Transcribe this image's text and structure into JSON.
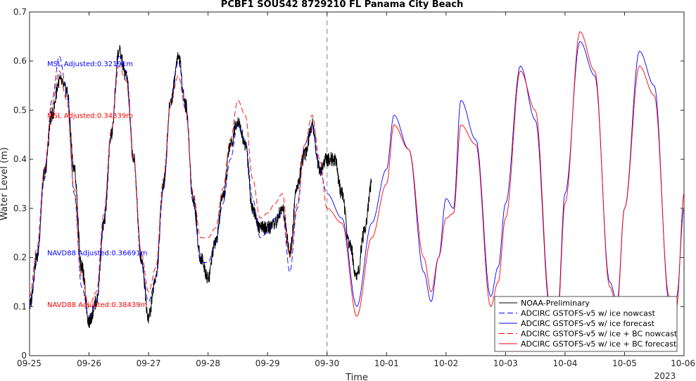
{
  "chart_data": {
    "type": "line",
    "title": "PCBF1 SOUS42 8729210 FL Panama City Beach",
    "xlabel": "Time",
    "ylabel": "Water Level (m)",
    "xlim": [
      "2023-09-25",
      "2023-10-06"
    ],
    "ylim": [
      0,
      0.7
    ],
    "year_label": "2023",
    "x_tick_labels": [
      "09-25",
      "09-26",
      "09-27",
      "09-28",
      "09-29",
      "09-30",
      "10-01",
      "10-02",
      "10-03",
      "10-04",
      "10-05",
      "10-06"
    ],
    "y_tick_labels": [
      "0",
      "0.1",
      "0.2",
      "0.3",
      "0.4",
      "0.5",
      "0.6",
      "0.7"
    ],
    "nowcast_forecast_divider": "2023-09-30",
    "grid": false,
    "legend_position": "bottom-right",
    "annotations": [
      {
        "text": "MSL Adjusted:0.32191m",
        "color": "#0000ff"
      },
      {
        "text": "MSL Adjusted:0.34339m",
        "color": "#ff0000"
      },
      {
        "text": "NAVD88 Adjusted:0.36691m",
        "color": "#0000ff"
      },
      {
        "text": "NAVD88 Adjusted:0.38439m",
        "color": "#ff0000"
      }
    ],
    "series": [
      {
        "name": "NOAA-Preliminary",
        "color": "#000000",
        "dash": "solid",
        "x_start": "2023-09-25T00:00",
        "x_end": "2023-09-30T18:00",
        "points": [
          [
            "09-25 00:00",
            0.1
          ],
          [
            "09-25 03:00",
            0.2
          ],
          [
            "09-25 06:00",
            0.37
          ],
          [
            "09-25 09:00",
            0.49
          ],
          [
            "09-25 12:00",
            0.56
          ],
          [
            "09-25 15:00",
            0.54
          ],
          [
            "09-25 18:00",
            0.38
          ],
          [
            "09-25 21:00",
            0.18
          ],
          [
            "09-26 00:00",
            0.07
          ],
          [
            "09-26 03:00",
            0.11
          ],
          [
            "09-26 06:00",
            0.27
          ],
          [
            "09-26 09:00",
            0.45
          ],
          [
            "09-26 12:00",
            0.62
          ],
          [
            "09-26 15:00",
            0.57
          ],
          [
            "09-26 18:00",
            0.4
          ],
          [
            "09-26 21:00",
            0.2
          ],
          [
            "09-27 00:00",
            0.08
          ],
          [
            "09-27 03:00",
            0.16
          ],
          [
            "09-27 06:00",
            0.35
          ],
          [
            "09-27 09:00",
            0.52
          ],
          [
            "09-27 12:00",
            0.61
          ],
          [
            "09-27 15:00",
            0.51
          ],
          [
            "09-27 18:00",
            0.32
          ],
          [
            "09-27 21:00",
            0.2
          ],
          [
            "09-28 00:00",
            0.16
          ],
          [
            "09-28 03:00",
            0.23
          ],
          [
            "09-28 06:00",
            0.32
          ],
          [
            "09-28 09:00",
            0.43
          ],
          [
            "09-28 12:00",
            0.48
          ],
          [
            "09-28 15:00",
            0.43
          ],
          [
            "09-28 18:00",
            0.3
          ],
          [
            "09-28 21:00",
            0.26
          ],
          [
            "09-29 00:00",
            0.26
          ],
          [
            "09-29 03:00",
            0.27
          ],
          [
            "09-29 06:00",
            0.3
          ],
          [
            "09-29 09:00",
            0.21
          ],
          [
            "09-29 12:00",
            0.35
          ],
          [
            "09-29 15:00",
            0.41
          ],
          [
            "09-29 18:00",
            0.47
          ],
          [
            "09-29 21:00",
            0.38
          ],
          [
            "09-30 00:00",
            0.4
          ],
          [
            "09-30 03:00",
            0.4
          ],
          [
            "09-30 06:00",
            0.33
          ],
          [
            "09-30 09:00",
            0.23
          ],
          [
            "09-30 12:00",
            0.16
          ],
          [
            "09-30 15:00",
            0.25
          ],
          [
            "09-30 18:00",
            0.35
          ]
        ]
      },
      {
        "name": "ADCIRC GSTOFS-v5 w/ ice nowcast",
        "color": "#0000ff",
        "dash": "dashed",
        "points": [
          [
            "09-25 00:00",
            0.1
          ],
          [
            "09-25 03:00",
            0.2
          ],
          [
            "09-25 06:00",
            0.36
          ],
          [
            "09-25 09:00",
            0.52
          ],
          [
            "09-25 12:00",
            0.61
          ],
          [
            "09-25 15:00",
            0.54
          ],
          [
            "09-25 18:00",
            0.33
          ],
          [
            "09-25 21:00",
            0.14
          ],
          [
            "09-26 00:00",
            0.08
          ],
          [
            "09-26 03:00",
            0.11
          ],
          [
            "09-26 06:00",
            0.27
          ],
          [
            "09-26 09:00",
            0.46
          ],
          [
            "09-26 12:00",
            0.61
          ],
          [
            "09-26 15:00",
            0.58
          ],
          [
            "09-26 18:00",
            0.4
          ],
          [
            "09-26 21:00",
            0.19
          ],
          [
            "09-27 00:00",
            0.11
          ],
          [
            "09-27 03:00",
            0.16
          ],
          [
            "09-27 06:00",
            0.34
          ],
          [
            "09-27 09:00",
            0.52
          ],
          [
            "09-27 12:00",
            0.6
          ],
          [
            "09-27 15:00",
            0.51
          ],
          [
            "09-27 18:00",
            0.31
          ],
          [
            "09-27 21:00",
            0.19
          ],
          [
            "09-28 00:00",
            0.19
          ],
          [
            "09-28 03:00",
            0.23
          ],
          [
            "09-28 06:00",
            0.31
          ],
          [
            "09-28 09:00",
            0.4
          ],
          [
            "09-28 12:00",
            0.47
          ],
          [
            "09-28 15:00",
            0.44
          ],
          [
            "09-28 18:00",
            0.32
          ],
          [
            "09-28 21:00",
            0.24
          ],
          [
            "09-29 00:00",
            0.25
          ],
          [
            "09-29 03:00",
            0.28
          ],
          [
            "09-29 06:00",
            0.29
          ],
          [
            "09-29 09:00",
            0.17
          ],
          [
            "09-29 12:00",
            0.3
          ],
          [
            "09-29 15:00",
            0.43
          ],
          [
            "09-29 18:00",
            0.47
          ],
          [
            "09-29 21:00",
            0.38
          ],
          [
            "09-30 00:00",
            0.33
          ]
        ]
      },
      {
        "name": "ADCIRC GSTOFS-v5 w/ ice forecast",
        "color": "#0000ff",
        "dash": "solid",
        "points": [
          [
            "09-30 00:00",
            0.33
          ],
          [
            "09-30 06:00",
            0.28
          ],
          [
            "09-30 12:00",
            0.1
          ],
          [
            "09-30 18:00",
            0.27
          ],
          [
            "10-01 00:00",
            0.38
          ],
          [
            "10-01 03:00",
            0.49
          ],
          [
            "10-01 09:00",
            0.42
          ],
          [
            "10-01 15:00",
            0.17
          ],
          [
            "10-01 18:00",
            0.11
          ],
          [
            "10-01 21:00",
            0.2
          ],
          [
            "10-02 00:00",
            0.32
          ],
          [
            "10-02 03:00",
            0.3
          ],
          [
            "10-02 06:00",
            0.52
          ],
          [
            "10-02 12:00",
            0.44
          ],
          [
            "10-02 18:00",
            0.12
          ],
          [
            "10-02 21:00",
            0.18
          ],
          [
            "10-03 00:00",
            0.31
          ],
          [
            "10-03 06:00",
            0.59
          ],
          [
            "10-03 12:00",
            0.48
          ],
          [
            "10-03 18:00",
            0.09
          ],
          [
            "10-03 21:00",
            0.09
          ],
          [
            "10-04 00:00",
            0.33
          ],
          [
            "10-04 06:00",
            0.64
          ],
          [
            "10-04 12:00",
            0.57
          ],
          [
            "10-04 18:00",
            0.15
          ],
          [
            "10-04 21:00",
            0.11
          ],
          [
            "10-05 00:00",
            0.3
          ],
          [
            "10-05 06:00",
            0.62
          ],
          [
            "10-05 12:00",
            0.55
          ],
          [
            "10-05 18:00",
            0.11
          ],
          [
            "10-05 21:00",
            0.12
          ],
          [
            "10-06 00:00",
            0.3
          ]
        ]
      },
      {
        "name": "ADCIRC GSTOFS-v5 w/ ice + BC nowcast",
        "color": "#ff0000",
        "dash": "dashed",
        "points": [
          [
            "09-25 00:00",
            0.12
          ],
          [
            "09-25 03:00",
            0.22
          ],
          [
            "09-25 06:00",
            0.38
          ],
          [
            "09-25 09:00",
            0.51
          ],
          [
            "09-25 12:00",
            0.58
          ],
          [
            "09-25 15:00",
            0.52
          ],
          [
            "09-25 18:00",
            0.34
          ],
          [
            "09-25 21:00",
            0.16
          ],
          [
            "09-26 00:00",
            0.1
          ],
          [
            "09-26 03:00",
            0.13
          ],
          [
            "09-26 06:00",
            0.29
          ],
          [
            "09-26 09:00",
            0.46
          ],
          [
            "09-26 12:00",
            0.59
          ],
          [
            "09-26 15:00",
            0.56
          ],
          [
            "09-26 18:00",
            0.4
          ],
          [
            "09-26 21:00",
            0.21
          ],
          [
            "09-27 00:00",
            0.13
          ],
          [
            "09-27 03:00",
            0.18
          ],
          [
            "09-27 06:00",
            0.36
          ],
          [
            "09-27 09:00",
            0.52
          ],
          [
            "09-27 12:00",
            0.57
          ],
          [
            "09-27 15:00",
            0.5
          ],
          [
            "09-27 18:00",
            0.33
          ],
          [
            "09-27 21:00",
            0.24
          ],
          [
            "09-28 00:00",
            0.24
          ],
          [
            "09-28 03:00",
            0.26
          ],
          [
            "09-28 06:00",
            0.34
          ],
          [
            "09-28 09:00",
            0.44
          ],
          [
            "09-28 12:00",
            0.52
          ],
          [
            "09-28 15:00",
            0.49
          ],
          [
            "09-28 18:00",
            0.36
          ],
          [
            "09-28 21:00",
            0.28
          ],
          [
            "09-29 00:00",
            0.29
          ],
          [
            "09-29 03:00",
            0.31
          ],
          [
            "09-29 06:00",
            0.33
          ],
          [
            "09-29 09:00",
            0.2
          ],
          [
            "09-29 12:00",
            0.31
          ],
          [
            "09-29 15:00",
            0.43
          ],
          [
            "09-29 18:00",
            0.49
          ],
          [
            "09-29 21:00",
            0.4
          ],
          [
            "09-30 00:00",
            0.3
          ]
        ]
      },
      {
        "name": "ADCIRC GSTOFS-v5 w/ ice + BC forecast",
        "color": "#ff0000",
        "dash": "solid",
        "points": [
          [
            "09-30 00:00",
            0.3
          ],
          [
            "09-30 06:00",
            0.27
          ],
          [
            "09-30 12:00",
            0.08
          ],
          [
            "09-30 18:00",
            0.24
          ],
          [
            "10-01 00:00",
            0.35
          ],
          [
            "10-01 03:00",
            0.47
          ],
          [
            "10-01 09:00",
            0.42
          ],
          [
            "10-01 15:00",
            0.2
          ],
          [
            "10-01 18:00",
            0.13
          ],
          [
            "10-01 21:00",
            0.2
          ],
          [
            "10-02 00:00",
            0.28
          ],
          [
            "10-02 03:00",
            0.29
          ],
          [
            "10-02 06:00",
            0.47
          ],
          [
            "10-02 12:00",
            0.43
          ],
          [
            "10-02 18:00",
            0.1
          ],
          [
            "10-02 21:00",
            0.15
          ],
          [
            "10-03 00:00",
            0.28
          ],
          [
            "10-03 06:00",
            0.58
          ],
          [
            "10-03 12:00",
            0.5
          ],
          [
            "10-03 18:00",
            0.1
          ],
          [
            "10-03 21:00",
            0.08
          ],
          [
            "10-04 00:00",
            0.31
          ],
          [
            "10-04 06:00",
            0.66
          ],
          [
            "10-04 12:00",
            0.58
          ],
          [
            "10-04 18:00",
            0.14
          ],
          [
            "10-04 21:00",
            0.1
          ],
          [
            "10-05 00:00",
            0.3
          ],
          [
            "10-05 06:00",
            0.59
          ],
          [
            "10-05 12:00",
            0.53
          ],
          [
            "10-05 18:00",
            0.12
          ],
          [
            "10-05 21:00",
            0.1
          ],
          [
            "10-06 00:00",
            0.33
          ]
        ]
      }
    ]
  }
}
